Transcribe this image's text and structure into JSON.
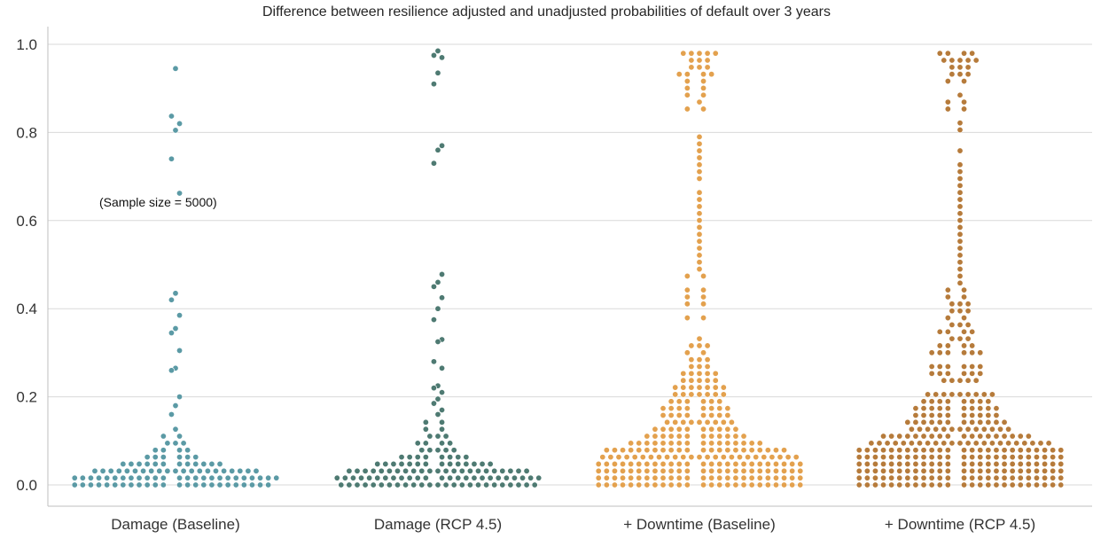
{
  "chart_data": {
    "type": "scatter",
    "subtype": "swarm",
    "title": "Difference between resilience adjusted and unadjusted probabilities of default over 3 years",
    "xlabel": "",
    "ylabel": "",
    "ylim": [
      -0.05,
      1.03
    ],
    "yticks": [
      "0.0",
      "0.2",
      "0.4",
      "0.6",
      "0.8",
      "1.0"
    ],
    "grid": true,
    "annotation": "(Sample size = 5000)",
    "categories": [
      "Damage (Baseline)",
      "Damage (RCP 4.5)",
      "+ Downtime (Baseline)",
      "+ Downtime (RCP 4.5)"
    ],
    "series": [
      {
        "color": "#5b9aa5",
        "outliers": [
          0.945,
          0.837,
          0.82,
          0.805,
          0.74,
          0.662,
          0.435,
          0.42,
          0.385,
          0.355,
          0.345,
          0.305,
          0.265,
          0.26,
          0.2,
          0.18,
          0.16
        ],
        "dense_max": 0.13,
        "profile": [
          [
            0.0,
            24
          ],
          [
            0.01,
            26
          ],
          [
            0.02,
            26
          ],
          [
            0.03,
            22
          ],
          [
            0.04,
            16
          ],
          [
            0.05,
            10
          ],
          [
            0.06,
            7
          ],
          [
            0.07,
            5
          ],
          [
            0.08,
            4
          ],
          [
            0.09,
            3
          ],
          [
            0.1,
            3
          ],
          [
            0.11,
            2
          ],
          [
            0.12,
            1
          ],
          [
            0.13,
            1
          ]
        ]
      },
      {
        "color": "#4e7a72",
        "outliers": [
          0.985,
          0.975,
          0.97,
          0.935,
          0.91,
          0.77,
          0.76,
          0.73,
          0.478,
          0.46,
          0.45,
          0.425,
          0.4,
          0.375,
          0.33,
          0.325,
          0.28,
          0.265,
          0.225,
          0.22,
          0.21,
          0.195,
          0.185,
          0.17,
          0.16
        ],
        "dense_max": 0.15,
        "profile": [
          [
            0.0,
            25
          ],
          [
            0.01,
            26
          ],
          [
            0.02,
            26
          ],
          [
            0.03,
            24
          ],
          [
            0.04,
            18
          ],
          [
            0.05,
            12
          ],
          [
            0.06,
            9
          ],
          [
            0.07,
            7
          ],
          [
            0.08,
            5
          ],
          [
            0.09,
            4
          ],
          [
            0.1,
            4
          ],
          [
            0.11,
            3
          ],
          [
            0.12,
            3
          ],
          [
            0.13,
            2
          ],
          [
            0.14,
            2
          ],
          [
            0.15,
            1
          ]
        ]
      },
      {
        "color": "#e3a14e",
        "outliers": [],
        "dense_max": 0.98,
        "profile": [
          [
            0.0,
            26
          ],
          [
            0.02,
            26
          ],
          [
            0.04,
            26
          ],
          [
            0.06,
            26
          ],
          [
            0.08,
            22
          ],
          [
            0.1,
            14
          ],
          [
            0.12,
            10
          ],
          [
            0.14,
            9
          ],
          [
            0.16,
            8
          ],
          [
            0.2,
            7
          ],
          [
            0.25,
            5
          ],
          [
            0.3,
            3
          ],
          [
            0.35,
            2
          ],
          [
            0.4,
            2
          ],
          [
            0.45,
            2
          ],
          [
            0.5,
            1
          ],
          [
            0.6,
            1
          ],
          [
            0.7,
            1
          ],
          [
            0.8,
            1
          ],
          [
            0.9,
            2
          ],
          [
            0.95,
            3
          ],
          [
            0.98,
            4
          ]
        ]
      },
      {
        "color": "#b67b3b",
        "outliers": [],
        "dense_max": 0.99,
        "profile": [
          [
            0.0,
            26
          ],
          [
            0.02,
            26
          ],
          [
            0.04,
            26
          ],
          [
            0.06,
            26
          ],
          [
            0.08,
            26
          ],
          [
            0.1,
            22
          ],
          [
            0.12,
            14
          ],
          [
            0.14,
            12
          ],
          [
            0.16,
            10
          ],
          [
            0.2,
            8
          ],
          [
            0.25,
            6
          ],
          [
            0.3,
            5
          ],
          [
            0.35,
            4
          ],
          [
            0.4,
            3
          ],
          [
            0.45,
            2
          ],
          [
            0.5,
            1
          ],
          [
            0.6,
            1
          ],
          [
            0.7,
            1
          ],
          [
            0.8,
            1
          ],
          [
            0.9,
            2
          ],
          [
            0.95,
            3
          ],
          [
            0.98,
            6
          ]
        ]
      }
    ]
  }
}
